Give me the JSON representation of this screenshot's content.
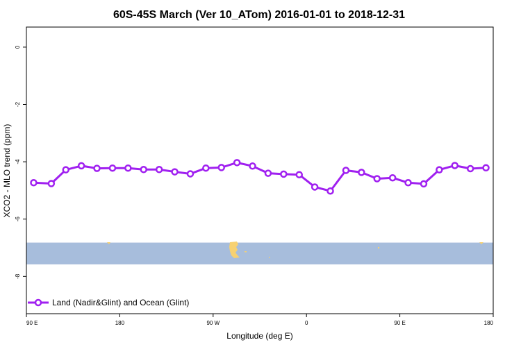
{
  "chart_data": {
    "type": "line",
    "title": "60S-45S March (Ver 10_ATom)   2016-01-01 to 2018-12-31",
    "xlabel": "Longitude (deg E)",
    "ylabel": "XCO2 - MLO trend (ppm)",
    "x_ticks": [
      {
        "value": 90,
        "label": "90 E"
      },
      {
        "value": 180,
        "label": "180"
      },
      {
        "value": 270,
        "label": "90 W"
      },
      {
        "value": 360,
        "label": "0"
      },
      {
        "value": 450,
        "label": "90 E"
      },
      {
        "value": 540,
        "label": "180"
      }
    ],
    "y_ticks": [
      0,
      -2,
      -4,
      -6,
      -8
    ],
    "xlim": [
      90,
      540
    ],
    "ylim": [
      -9.3,
      0.7
    ],
    "grid": false,
    "legend_position": "bottom-left",
    "series": [
      {
        "name": "Land (Nadir&Glint) and Ocean (Glint)",
        "color": "#a020f0",
        "x": [
          97,
          114,
          128,
          143,
          158,
          173,
          188,
          203,
          218,
          233,
          248,
          263,
          278,
          293,
          308,
          323,
          338,
          353,
          368,
          383,
          398,
          413,
          428,
          443,
          458,
          473,
          488,
          503,
          518,
          533
        ],
        "y": [
          -4.73,
          -4.76,
          -4.28,
          -4.14,
          -4.23,
          -4.22,
          -4.22,
          -4.27,
          -4.27,
          -4.35,
          -4.42,
          -4.22,
          -4.2,
          -4.03,
          -4.15,
          -4.4,
          -4.43,
          -4.45,
          -4.88,
          -5.02,
          -4.3,
          -4.37,
          -4.59,
          -4.56,
          -4.73,
          -4.77,
          -4.28,
          -4.13,
          -4.24,
          -4.21
        ]
      }
    ],
    "map_band": {
      "y_range": [
        -6.82,
        -7.58
      ],
      "ocean_color": "#a7bddc",
      "land_color": "#f7d171"
    }
  }
}
